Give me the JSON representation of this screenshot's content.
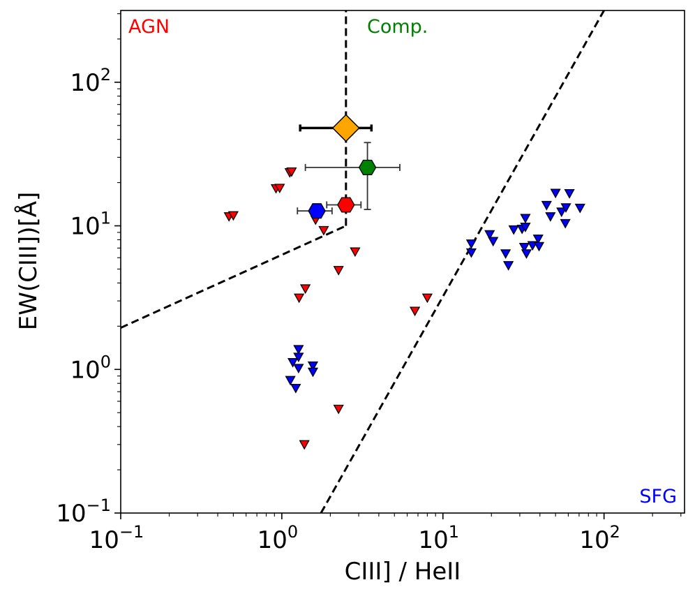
{
  "colors": {
    "agn": "#ff0000",
    "comp": "#008000",
    "sfg": "#0000ff",
    "orange": "#ffa500",
    "axis": "#000000",
    "errorbar": "#333333"
  },
  "chart_data": {
    "type": "scatter",
    "xscale": "log",
    "yscale": "log",
    "xlabel": "CIII] / HeII",
    "ylabel": "EW(CIII])[Å]",
    "xlim": [
      0.1,
      316
    ],
    "ylim": [
      0.1,
      316
    ],
    "x_major_ticks": [
      {
        "value": 0.1,
        "base": "10",
        "exp": "−1"
      },
      {
        "value": 1,
        "base": "10",
        "exp": "0"
      },
      {
        "value": 10,
        "base": "10",
        "exp": "1"
      },
      {
        "value": 100,
        "base": "10",
        "exp": "2"
      }
    ],
    "y_major_ticks": [
      {
        "value": 0.1,
        "base": "10",
        "exp": "−1"
      },
      {
        "value": 1,
        "base": "10",
        "exp": "0"
      },
      {
        "value": 10,
        "base": "10",
        "exp": "1"
      },
      {
        "value": 100,
        "base": "10",
        "exp": "2"
      }
    ],
    "region_labels": [
      {
        "text": "AGN",
        "color": "#ff0000",
        "position": "top-left"
      },
      {
        "text": "Comp.",
        "color": "#008000",
        "position": "top-center"
      },
      {
        "text": "SFG",
        "color": "#0000ff",
        "position": "bottom-right"
      }
    ],
    "dividing_lines": [
      {
        "name": "agn-comp-vertical",
        "points": [
          [
            2.5,
            10
          ],
          [
            2.5,
            316
          ]
        ]
      },
      {
        "name": "agn-comp-diagonal",
        "points": [
          [
            0.1,
            1.95
          ],
          [
            2.5,
            10
          ]
        ]
      },
      {
        "name": "comp-sfg-diagonal",
        "points": [
          [
            1.75,
            0.1
          ],
          [
            100,
            316
          ]
        ]
      }
    ],
    "series": [
      {
        "name": "AGN upper limits",
        "marker": "triangle-down",
        "color": "#ff0000",
        "points": [
          [
            0.47,
            11.6
          ],
          [
            0.5,
            11.8
          ],
          [
            0.92,
            18.2
          ],
          [
            0.97,
            18.3
          ],
          [
            1.12,
            23.5
          ],
          [
            1.15,
            23.8
          ],
          [
            1.62,
            11.0
          ],
          [
            1.82,
            9.3
          ],
          [
            2.25,
            4.9
          ],
          [
            2.85,
            6.6
          ],
          [
            1.28,
            3.15
          ],
          [
            1.4,
            3.65
          ],
          [
            6.7,
            2.55
          ],
          [
            8.0,
            3.15
          ],
          [
            2.25,
            0.53
          ],
          [
            1.38,
            0.3
          ]
        ]
      },
      {
        "name": "SFG upper limits",
        "marker": "triangle-down",
        "color": "#0000ff",
        "points": [
          [
            1.27,
            1.38
          ],
          [
            1.27,
            1.22
          ],
          [
            1.17,
            1.12
          ],
          [
            1.27,
            1.02
          ],
          [
            1.56,
            1.06
          ],
          [
            1.56,
            0.96
          ],
          [
            1.13,
            0.84
          ],
          [
            1.22,
            0.74
          ],
          [
            15.0,
            7.5
          ],
          [
            15.0,
            6.5
          ],
          [
            19.5,
            8.7
          ],
          [
            20.5,
            7.8
          ],
          [
            24.5,
            6.4
          ],
          [
            25.5,
            5.3
          ],
          [
            27.5,
            9.4
          ],
          [
            31.0,
            9.5
          ],
          [
            32.5,
            11.3
          ],
          [
            32.5,
            9.8
          ],
          [
            32.0,
            7.1
          ],
          [
            33.0,
            6.4
          ],
          [
            36.0,
            7.3
          ],
          [
            39.0,
            8.1
          ],
          [
            39.5,
            7.2
          ],
          [
            44.0,
            13.9
          ],
          [
            46.5,
            11.6
          ],
          [
            50.0,
            16.9
          ],
          [
            54.5,
            12.5
          ],
          [
            57.5,
            10.4
          ],
          [
            58.0,
            13.4
          ],
          [
            61.0,
            16.8
          ],
          [
            71.0,
            13.3
          ]
        ]
      },
      {
        "name": "orange diamond",
        "marker": "diamond",
        "color": "#ffa500",
        "points": [
          [
            2.5,
            48
          ]
        ],
        "xerr": [
          [
            1.3,
            3.6
          ]
        ],
        "yerr": []
      },
      {
        "name": "green hexagon",
        "marker": "hexagon",
        "color": "#008000",
        "points": [
          [
            3.4,
            25.5
          ]
        ],
        "xerr": [
          [
            1.4,
            5.4
          ]
        ],
        "yerr": [
          [
            13.0,
            38.0
          ]
        ]
      },
      {
        "name": "red hexagon",
        "marker": "hexagon",
        "color": "#ff0000",
        "points": [
          [
            2.5,
            14.0
          ]
        ],
        "xerr": [
          [
            1.9,
            3.1
          ]
        ],
        "yerr": []
      },
      {
        "name": "blue hexagon",
        "marker": "hexagon",
        "color": "#0000ff",
        "points": [
          [
            1.65,
            12.7
          ]
        ],
        "xerr": [
          [
            1.25,
            2.05
          ]
        ],
        "yerr": []
      }
    ]
  }
}
